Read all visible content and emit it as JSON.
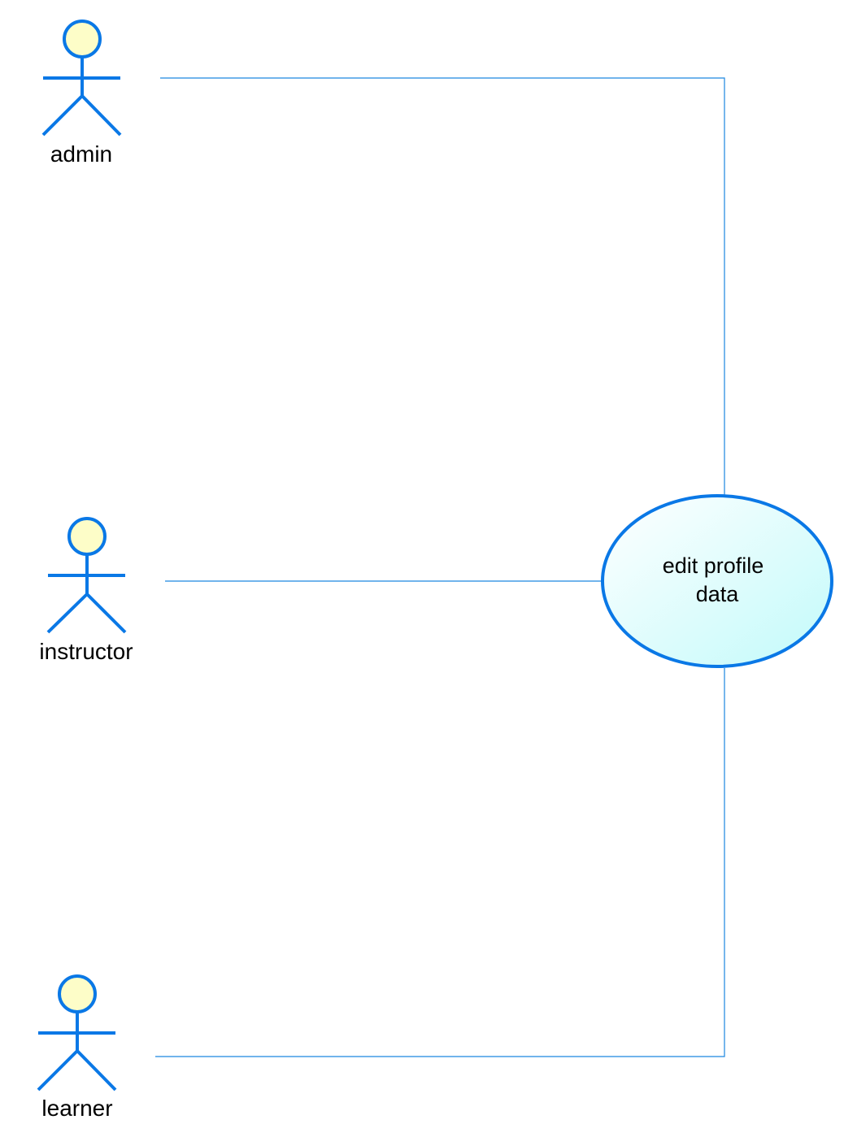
{
  "colors": {
    "background": "#ffffff",
    "actor_stroke": "#0a78e6",
    "actor_head_fill": "#fdfdc8",
    "connector": "#1c86e0",
    "usecase_stroke": "#0a78e6",
    "usecase_fill_start": "#ffffff",
    "usecase_fill_end": "#c2fafa",
    "text": "#000000"
  },
  "actors": [
    {
      "id": "admin",
      "label": "admin",
      "icon": "stick-figure-icon"
    },
    {
      "id": "instructor",
      "label": "instructor",
      "icon": "stick-figure-icon"
    },
    {
      "id": "learner",
      "label": "learner",
      "icon": "stick-figure-icon"
    }
  ],
  "use_case": {
    "line1": "edit profile",
    "line2": "data"
  },
  "associations": [
    {
      "from": "admin",
      "to": "use_case"
    },
    {
      "from": "instructor",
      "to": "use_case"
    },
    {
      "from": "learner",
      "to": "use_case"
    }
  ]
}
